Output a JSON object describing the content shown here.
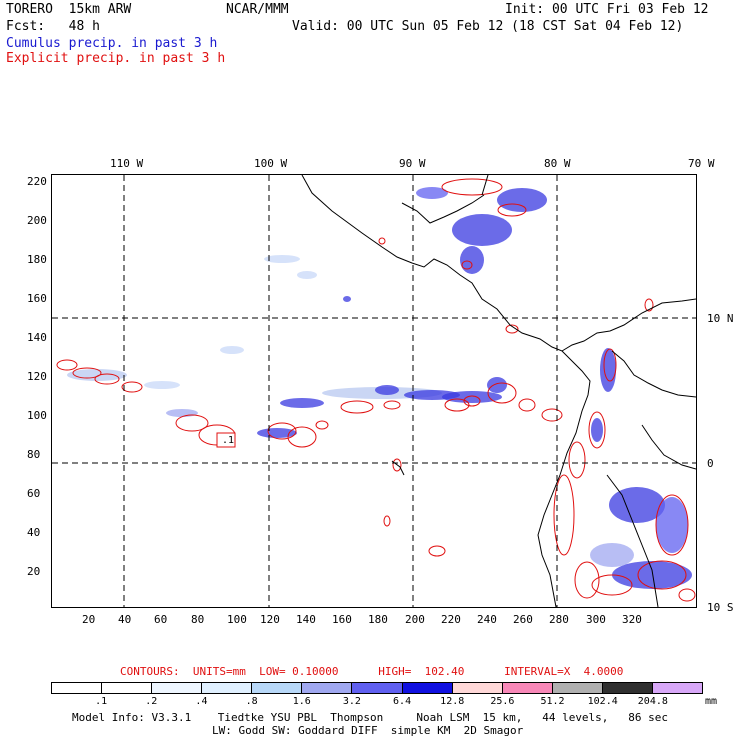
{
  "header": {
    "model": "TORERO  15km ARW",
    "center": "NCAR/MMM",
    "init": "Init: 00 UTC Fri 03 Feb 12",
    "fcst": "Fcst:   48 h",
    "valid": "Valid: 00 UTC Sun 05 Feb 12 (18 CST Sat 04 Feb 12)",
    "cumulus": "Cumulus precip. in past 3 h",
    "explicit": "Explicit precip. in past 3 h"
  },
  "map": {
    "lon_labels": [
      "110 W",
      "100 W",
      "90 W",
      "80 W",
      "70 W"
    ],
    "lat_labels": [
      "10 N",
      "0",
      "10 S"
    ],
    "y_ticks": [
      "220",
      "200",
      "180",
      "160",
      "140",
      "120",
      "100",
      "80",
      "60",
      "40",
      "20"
    ],
    "x_ticks": [
      "20",
      "40",
      "60",
      "80",
      "100",
      "120",
      "140",
      "160",
      "180",
      "200",
      "220",
      "240",
      "260",
      "280",
      "300",
      "320"
    ],
    "box_label": ".1",
    "colors": {
      "cumulus": "#1a1ad0",
      "explicit": "#e01010",
      "coast": "#000000",
      "grid": "#000000"
    }
  },
  "contours_info": "CONTOURS:  UNITS=mm  LOW= 0.10000      HIGH=  102.40      INTERVAL=X  4.0000",
  "colorbar": {
    "colors": [
      "#ffffff",
      "#ffffff",
      "#eef6ff",
      "#e0f0ff",
      "#b8d8f8",
      "#a0a8f0",
      "#6060f0",
      "#1010e0",
      "#ffd8d8",
      "#f888b8",
      "#b0b0b0",
      "#303030",
      "#d8a8f8"
    ],
    "labels": [
      ".1",
      ".2",
      ".4",
      ".8",
      "1.6",
      "3.2",
      "6.4",
      "12.8",
      "25.6",
      "51.2",
      "102.4",
      "204.8",
      "mm"
    ]
  },
  "footer": {
    "line1": "Model Info: V3.3.1    Tiedtke YSU PBL  Thompson     Noah LSM  15 km,   44 levels,   86 sec",
    "line2": "LW: Godd SW: Goddard DIFF  simple KM  2D Smagor"
  }
}
